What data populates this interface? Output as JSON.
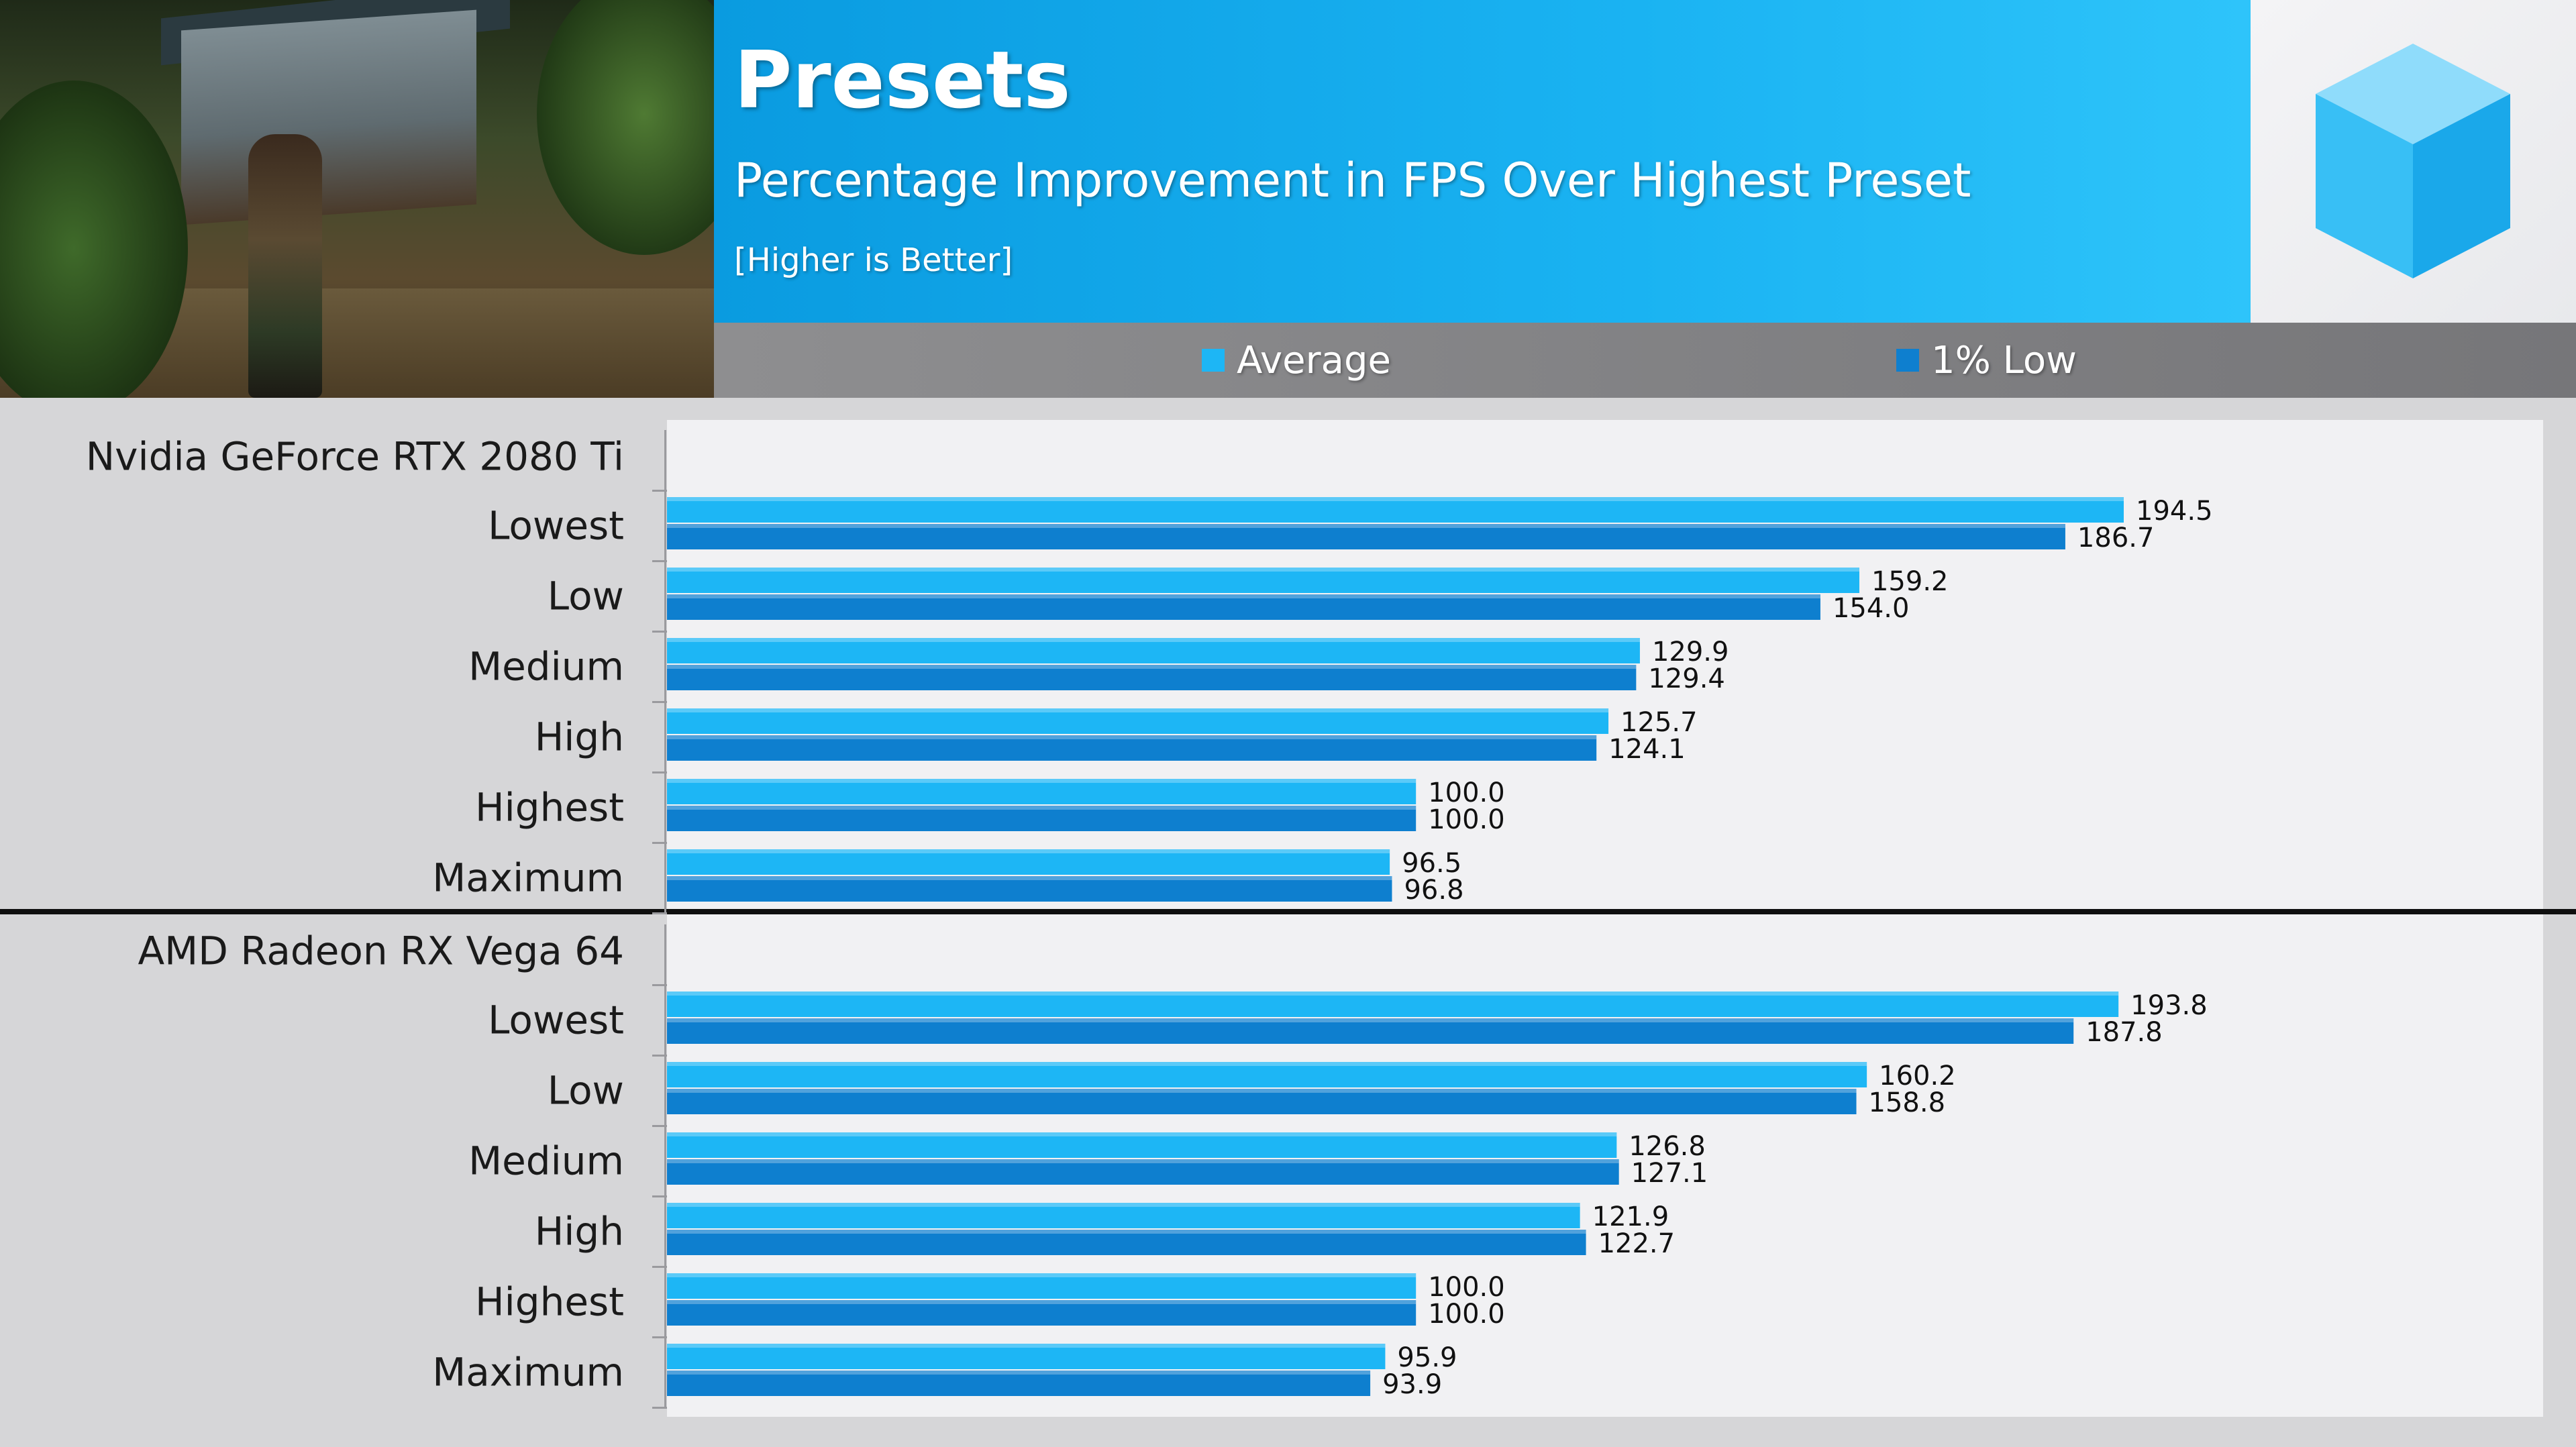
{
  "header": {
    "title": "Presets",
    "subtitle": "Percentage Improvement in FPS Over Highest Preset",
    "note": "[Higher is Better]"
  },
  "legend": [
    {
      "label": "Average",
      "color": "#1db6f5"
    },
    {
      "label": "1% Low",
      "color": "#0e7fcf"
    }
  ],
  "colors": {
    "average": "#1db6f5",
    "one_percent_low": "#0e7fcf",
    "group_label": "#1a1a1a",
    "value_label": "#111111"
  },
  "chart_data": {
    "type": "bar",
    "orientation": "horizontal",
    "title": "Percentage Improvement in FPS Over Highest Preset",
    "xlim": [
      0,
      200
    ],
    "grid": false,
    "legend_position": "top",
    "groups": [
      {
        "name": "Nvidia GeForce RTX 2080 Ti",
        "categories": [
          "Lowest",
          "Low",
          "Medium",
          "High",
          "Highest",
          "Maximum"
        ],
        "series": [
          {
            "name": "Average",
            "values": [
              194.5,
              159.2,
              129.9,
              125.7,
              100.0,
              96.5
            ],
            "labels": [
              "194.5",
              "159.2",
              "129.9",
              "125.7",
              "100.0",
              "96.5"
            ]
          },
          {
            "name": "1% Low",
            "values": [
              186.7,
              154.0,
              129.4,
              124.1,
              100.0,
              96.8
            ],
            "labels": [
              "186.7",
              "154.0",
              "129.4",
              "124.1",
              "100.0",
              "96.8"
            ]
          }
        ]
      },
      {
        "name": "AMD Radeon RX Vega 64",
        "categories": [
          "Lowest",
          "Low",
          "Medium",
          "High",
          "Highest",
          "Maximum"
        ],
        "series": [
          {
            "name": "Average",
            "values": [
              193.8,
              160.2,
              126.8,
              121.9,
              100.0,
              95.9
            ],
            "labels": [
              "193.8",
              "160.2",
              "126.8",
              "121.9",
              "100.0",
              "95.9"
            ]
          },
          {
            "name": "1% Low",
            "values": [
              187.8,
              158.8,
              127.1,
              122.7,
              100.0,
              93.9
            ],
            "labels": [
              "187.8",
              "158.8",
              "127.1",
              "122.7",
              "100.0",
              "93.9"
            ]
          }
        ]
      }
    ]
  }
}
